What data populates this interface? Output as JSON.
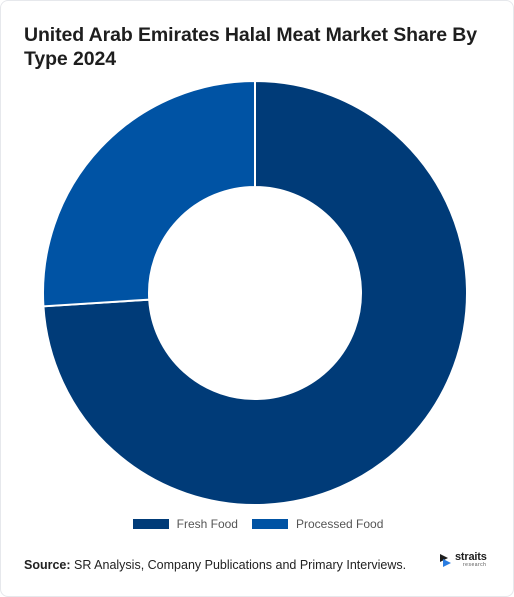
{
  "chart_data": {
    "type": "pie",
    "title": "United Arab Emirates Halal Meat Market Share By Type 2024",
    "categories": [
      "Fresh Food",
      "Processed Food"
    ],
    "values": [
      74,
      26
    ],
    "colors": [
      "#003b78",
      "#0053a4"
    ],
    "legend_position": "bottom",
    "donut": true
  },
  "legend": [
    {
      "label": "Fresh Food",
      "color": "#003b78"
    },
    {
      "label": "Processed Food",
      "color": "#0053a4"
    }
  ],
  "footer": {
    "source_label": "Source:",
    "source_text": " SR Analysis, Company Publications and Primary Interviews."
  },
  "logo": {
    "name": "straits",
    "sub": "research",
    "icon": "straits-logo-icon"
  }
}
